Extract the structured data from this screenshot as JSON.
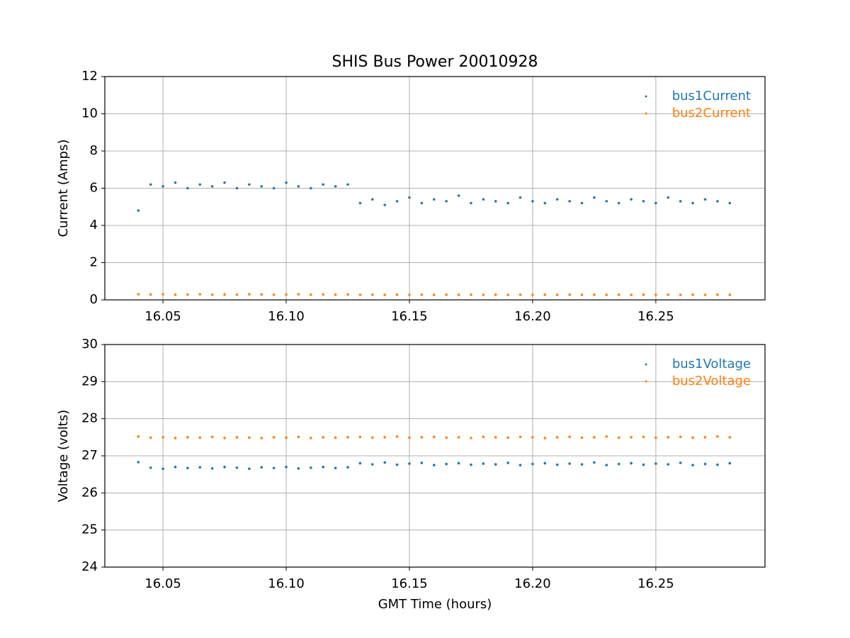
{
  "chart_data": [
    {
      "type": "scatter",
      "title": "SHIS Bus Power 20010928",
      "y_label": "Current (Amps)",
      "x": [
        16.04,
        16.045,
        16.05,
        16.055,
        16.06,
        16.065,
        16.07,
        16.075,
        16.08,
        16.085,
        16.09,
        16.095,
        16.1,
        16.105,
        16.11,
        16.115,
        16.12,
        16.125,
        16.13,
        16.135,
        16.14,
        16.145,
        16.15,
        16.155,
        16.16,
        16.165,
        16.17,
        16.175,
        16.18,
        16.185,
        16.19,
        16.195,
        16.2,
        16.205,
        16.21,
        16.215,
        16.22,
        16.225,
        16.23,
        16.235,
        16.24,
        16.245,
        16.25,
        16.255,
        16.26,
        16.265,
        16.27,
        16.275,
        16.28
      ],
      "series": [
        {
          "name": "bus1Current",
          "color": "#1f77b4",
          "values": [
            4.8,
            6.2,
            6.1,
            6.3,
            6.0,
            6.2,
            6.1,
            6.3,
            6.0,
            6.2,
            6.1,
            6.0,
            6.3,
            6.1,
            6.0,
            6.2,
            6.1,
            6.2,
            5.2,
            5.4,
            5.1,
            5.3,
            5.5,
            5.2,
            5.4,
            5.3,
            5.6,
            5.2,
            5.4,
            5.3,
            5.2,
            5.5,
            5.3,
            5.2,
            5.4,
            5.3,
            5.2,
            5.5,
            5.3,
            5.2,
            5.4,
            5.3,
            5.2,
            5.5,
            5.3,
            5.2,
            5.4,
            5.3,
            5.2
          ]
        },
        {
          "name": "bus2Current",
          "color": "#ff7f0e",
          "values": [
            0.3,
            0.29,
            0.3,
            0.28,
            0.29,
            0.3,
            0.28,
            0.29,
            0.28,
            0.3,
            0.29,
            0.28,
            0.29,
            0.3,
            0.28,
            0.29,
            0.28,
            0.29,
            0.27,
            0.28,
            0.27,
            0.28,
            0.27,
            0.28,
            0.27,
            0.28,
            0.27,
            0.28,
            0.27,
            0.28,
            0.27,
            0.28,
            0.27,
            0.28,
            0.27,
            0.28,
            0.27,
            0.28,
            0.27,
            0.28,
            0.27,
            0.28,
            0.27,
            0.28,
            0.27,
            0.28,
            0.27,
            0.28,
            0.27
          ]
        }
      ],
      "xlim": [
        16.0264,
        16.2943
      ],
      "ylim": [
        0,
        12
      ],
      "xticks": [
        16.05,
        {
          "value": 16.1,
          "label": "16.10"
        },
        16.15,
        {
          "value": 16.2,
          "label": "16.20"
        },
        16.25
      ],
      "yticks": [
        0,
        2,
        4,
        6,
        8,
        10,
        12
      ],
      "grid": true,
      "legend": "upper right"
    },
    {
      "type": "scatter",
      "y_label": "Voltage (volts)",
      "x_label": "GMT Time (hours)",
      "x": [
        16.04,
        16.045,
        16.05,
        16.055,
        16.06,
        16.065,
        16.07,
        16.075,
        16.08,
        16.085,
        16.09,
        16.095,
        16.1,
        16.105,
        16.11,
        16.115,
        16.12,
        16.125,
        16.13,
        16.135,
        16.14,
        16.145,
        16.15,
        16.155,
        16.16,
        16.165,
        16.17,
        16.175,
        16.18,
        16.185,
        16.19,
        16.195,
        16.2,
        16.205,
        16.21,
        16.215,
        16.22,
        16.225,
        16.23,
        16.235,
        16.24,
        16.245,
        16.25,
        16.255,
        16.26,
        16.265,
        16.27,
        16.275,
        16.28
      ],
      "series": [
        {
          "name": "bus1Voltage",
          "color": "#1f77b4",
          "values": [
            26.83,
            26.68,
            26.65,
            26.7,
            26.67,
            26.69,
            26.66,
            26.7,
            26.68,
            26.65,
            26.69,
            26.67,
            26.7,
            26.66,
            26.68,
            26.7,
            26.67,
            26.69,
            26.8,
            26.77,
            26.82,
            26.76,
            26.79,
            26.81,
            26.75,
            26.78,
            26.8,
            26.76,
            26.79,
            26.77,
            26.81,
            26.75,
            26.78,
            26.8,
            26.76,
            26.79,
            26.77,
            26.82,
            26.75,
            26.78,
            26.8,
            26.76,
            26.79,
            26.77,
            26.81,
            26.75,
            26.78,
            26.76,
            26.8
          ]
        },
        {
          "name": "bus2Voltage",
          "color": "#ff7f0e",
          "values": [
            27.52,
            27.49,
            27.5,
            27.48,
            27.5,
            27.49,
            27.51,
            27.48,
            27.5,
            27.49,
            27.48,
            27.5,
            27.49,
            27.51,
            27.48,
            27.5,
            27.49,
            27.5,
            27.51,
            27.49,
            27.5,
            27.52,
            27.49,
            27.5,
            27.51,
            27.49,
            27.5,
            27.48,
            27.51,
            27.5,
            27.49,
            27.51,
            27.5,
            27.48,
            27.5,
            27.51,
            27.49,
            27.5,
            27.52,
            27.49,
            27.5,
            27.51,
            27.49,
            27.5,
            27.51,
            27.49,
            27.5,
            27.52,
            27.5
          ]
        }
      ],
      "xlim": [
        16.0264,
        16.2943
      ],
      "ylim": [
        24,
        30
      ],
      "xticks": [
        16.05,
        {
          "value": 16.1,
          "label": "16.10"
        },
        16.15,
        {
          "value": 16.2,
          "label": "16.20"
        },
        16.25
      ],
      "yticks": [
        24,
        25,
        26,
        27,
        28,
        29,
        30
      ],
      "grid": true,
      "legend": "upper right"
    }
  ]
}
